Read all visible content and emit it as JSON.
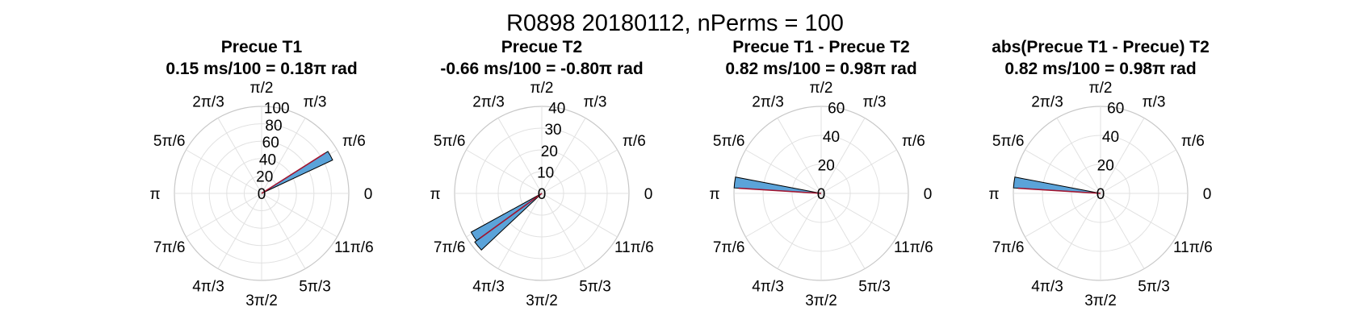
{
  "figure": {
    "title": "R0898 20180112, nPerms = 100"
  },
  "angle_tick_labels": [
    "0",
    "π/6",
    "π/3",
    "π/2",
    "2π/3",
    "5π/6",
    "π",
    "7π/6",
    "4π/3",
    "3π/2",
    "5π/3",
    "11π/6"
  ],
  "colors": {
    "bar_fill": "#5ba3d9",
    "bar_edge": "#000000",
    "resultant": "#a2142f",
    "grid": "#e1e1e1"
  },
  "chart_data": [
    {
      "type": "polar-histogram",
      "title_line1": "Precue T1",
      "title_line2": "0.15 ms/100 = 0.18π rad",
      "rlim": [
        0,
        100
      ],
      "r_ticks": [
        "0",
        "20",
        "40",
        "60",
        "80",
        "100"
      ],
      "r_tick_values": [
        0,
        20,
        40,
        60,
        80,
        100
      ],
      "bins": [
        {
          "theta_start_pi": 0.14,
          "theta_end_pi": 0.18,
          "count": 90
        }
      ],
      "resultant": {
        "theta_pi": 0.18,
        "length": 86
      }
    },
    {
      "type": "polar-histogram",
      "title_line1": "Precue T2",
      "title_line2": "-0.66 ms/100 = -0.80π rad",
      "rlim": [
        0,
        40
      ],
      "r_ticks": [
        "0",
        "10",
        "20",
        "30",
        "40"
      ],
      "r_tick_values": [
        0,
        10,
        20,
        30,
        40
      ],
      "bins": [
        {
          "theta_start_pi": 1.16,
          "theta_end_pi": 1.2,
          "count": 37
        },
        {
          "theta_start_pi": 1.2,
          "theta_end_pi": 1.24,
          "count": 38
        }
      ],
      "resultant": {
        "theta_pi": 1.2,
        "length": 35
      }
    },
    {
      "type": "polar-histogram",
      "title_line1": "Precue T1 - Precue T2",
      "title_line2": "0.82 ms/100 = 0.98π rad",
      "rlim": [
        0,
        60
      ],
      "r_ticks": [
        "0",
        "20",
        "40",
        "60"
      ],
      "r_tick_values": [
        0,
        20,
        40,
        60
      ],
      "bins": [
        {
          "theta_start_pi": 0.94,
          "theta_end_pi": 0.98,
          "count": 60
        }
      ],
      "resultant": {
        "theta_pi": 0.98,
        "length": 57
      }
    },
    {
      "type": "polar-histogram",
      "title_line1": "abs(Precue T1 - Precue) T2",
      "title_line2": "0.82 ms/100 = 0.98π rad",
      "rlim": [
        0,
        60
      ],
      "r_ticks": [
        "0",
        "20",
        "40",
        "60"
      ],
      "r_tick_values": [
        0,
        20,
        40,
        60
      ],
      "bins": [
        {
          "theta_start_pi": 0.94,
          "theta_end_pi": 0.98,
          "count": 60
        }
      ],
      "resultant": {
        "theta_pi": 0.98,
        "length": 57
      }
    }
  ]
}
